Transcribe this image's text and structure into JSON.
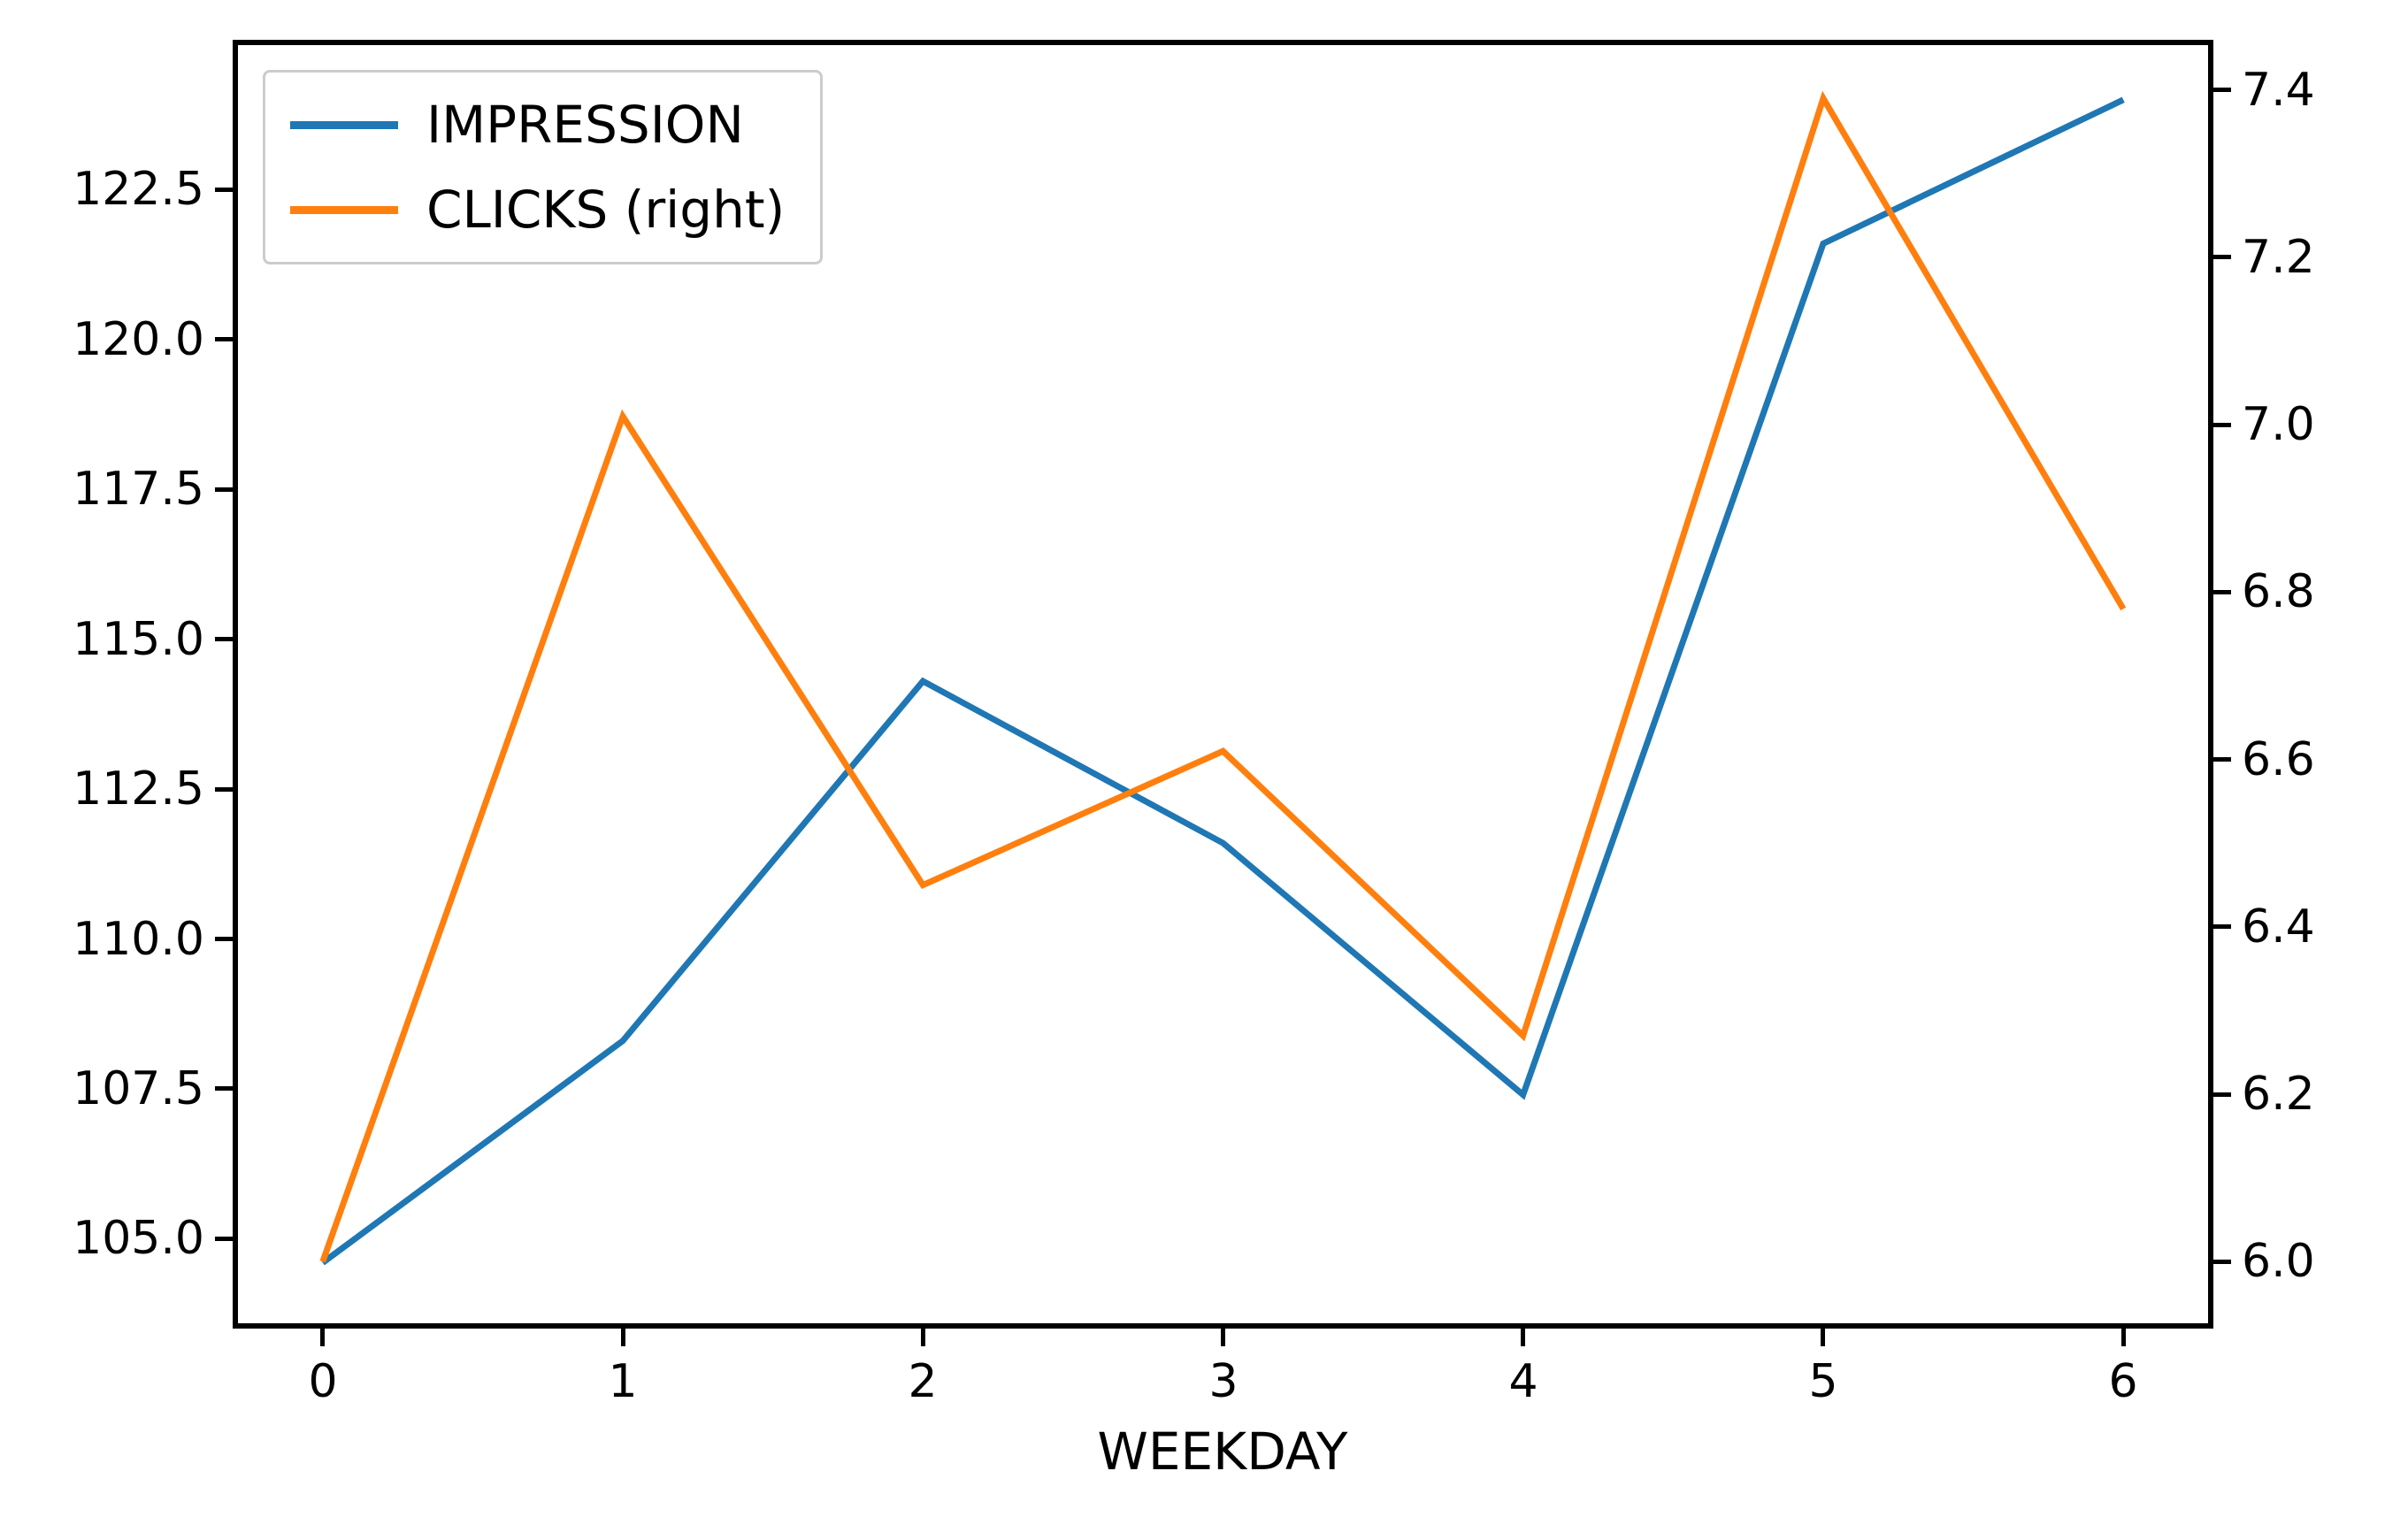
{
  "colors": {
    "impression": "#1f77b4",
    "clicks": "#ff7f0e",
    "spine": "#000000",
    "legend_border": "#cccccc",
    "background": "#ffffff"
  },
  "chart_data": {
    "type": "line",
    "title": "",
    "xlabel": "WEEKDAY",
    "x": [
      0,
      1,
      2,
      3,
      4,
      5,
      6
    ],
    "x_tick_labels": [
      "0",
      "1",
      "2",
      "3",
      "4",
      "5",
      "6"
    ],
    "xlim": [
      -0.3,
      6.3
    ],
    "grid": false,
    "series": [
      {
        "name": "IMPRESSION",
        "axis": "left",
        "color": "#1f77b4",
        "values": [
          104.6,
          108.3,
          114.3,
          111.6,
          107.4,
          121.6,
          124.0
        ]
      },
      {
        "name": "CLICKS (right)",
        "axis": "right",
        "color": "#ff7f0e",
        "values": [
          6.0,
          7.01,
          6.45,
          6.61,
          6.27,
          7.39,
          6.78
        ]
      }
    ],
    "left_axis": {
      "tick_labels": [
        "122.5",
        "120.0",
        "117.5",
        "115.0",
        "112.5",
        "110.0",
        "107.5",
        "105.0"
      ],
      "tick_values": [
        122.5,
        120.0,
        117.5,
        115.0,
        112.5,
        110.0,
        107.5,
        105.0
      ],
      "ylim": [
        103.5,
        125.0
      ]
    },
    "right_axis": {
      "tick_labels": [
        "7.4",
        "7.2",
        "7.0",
        "6.8",
        "6.6",
        "6.4",
        "6.2",
        "6.0"
      ],
      "tick_values": [
        7.4,
        7.2,
        7.0,
        6.8,
        6.6,
        6.4,
        6.2,
        6.0
      ],
      "ylim": [
        5.92,
        7.46
      ]
    },
    "legend": {
      "position": "upper left",
      "entries": [
        "IMPRESSION",
        "CLICKS (right)"
      ]
    }
  }
}
